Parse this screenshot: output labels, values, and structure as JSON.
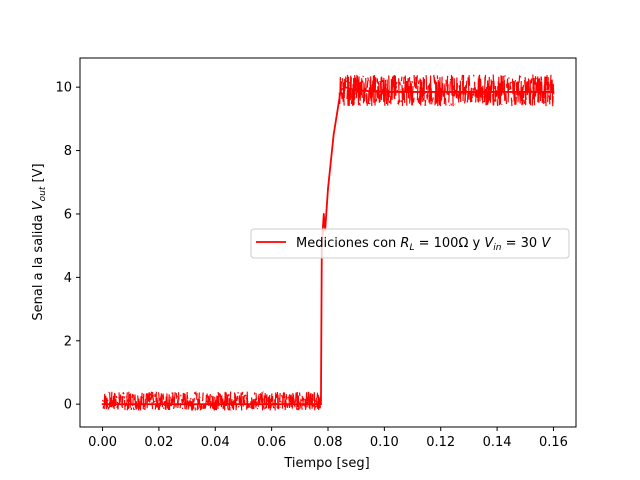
{
  "chart_data": {
    "type": "line",
    "title": "",
    "xlabel": "Tiempo [seg]",
    "ylabel": {
      "prefix": "Senal a la salida ",
      "symbol": "V",
      "subscript": "out",
      "suffix": " [V]"
    },
    "xlim": [
      -0.008,
      0.168
    ],
    "ylim": [
      -0.72,
      10.92
    ],
    "xticks": [
      0.0,
      0.02,
      0.04,
      0.06,
      0.08,
      0.1,
      0.12,
      0.14,
      0.16
    ],
    "xtick_labels": [
      "0.00",
      "0.02",
      "0.04",
      "0.06",
      "0.08",
      "0.10",
      "0.12",
      "0.14",
      "0.16"
    ],
    "yticks": [
      0,
      2,
      4,
      6,
      8,
      10
    ],
    "ytick_labels": [
      "0",
      "2",
      "4",
      "6",
      "8",
      "10"
    ],
    "grid": false,
    "legend_position": "center-right",
    "series": [
      {
        "name": "Mediciones con R_L = 100Ω y V_in = 30 V",
        "color": "#ff0000",
        "x": [
          0.0,
          0.01,
          0.02,
          0.03,
          0.04,
          0.05,
          0.06,
          0.07,
          0.0775,
          0.0778,
          0.0785,
          0.079,
          0.08,
          0.082,
          0.0845,
          0.086,
          0.09,
          0.1,
          0.11,
          0.12,
          0.13,
          0.14,
          0.15,
          0.16
        ],
        "y": [
          0.0,
          0.0,
          0.0,
          0.0,
          0.0,
          0.0,
          0.0,
          0.0,
          0.0,
          5.0,
          6.0,
          5.5,
          6.8,
          8.5,
          9.9,
          10.0,
          9.9,
          9.85,
          9.85,
          9.85,
          9.85,
          9.85,
          9.85,
          9.85
        ],
        "noise_band": [
          {
            "x_start": 0.0,
            "x_end": 0.0775,
            "y_min": -0.2,
            "y_max": 0.4
          },
          {
            "x_start": 0.084,
            "x_end": 0.16,
            "y_min": 9.4,
            "y_max": 10.4
          }
        ]
      }
    ],
    "legend": {
      "entry_prefix": "Mediciones con ",
      "r_symbol": "R",
      "r_sub": "L",
      "r_value": " = 100Ω y ",
      "v_symbol": "V",
      "v_sub": "in",
      "v_value": " = 30 ",
      "v_unit": "V"
    }
  }
}
